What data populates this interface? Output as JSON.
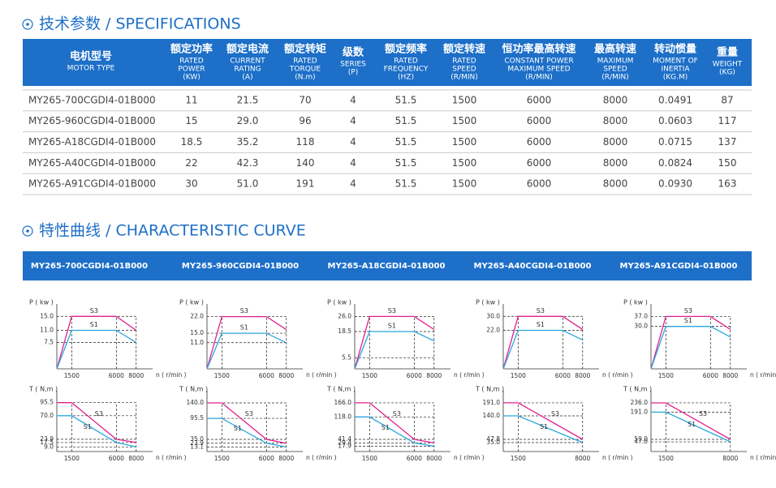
{
  "spec_title": "技术参数 / SPECIFICATIONS",
  "table": {
    "header": [
      {
        "cn": "电机型号",
        "en": [
          "MOTOR TYPE"
        ]
      },
      {
        "cn": "额定功率",
        "en": [
          "RATED",
          "POWER",
          "(KW)"
        ]
      },
      {
        "cn": "额定电流",
        "en": [
          "CURRENT",
          "RATING",
          "(A)"
        ]
      },
      {
        "cn": "额定转矩",
        "en": [
          "RATED",
          "TORQUE",
          "(N.m)"
        ]
      },
      {
        "cn": "级数",
        "en": [
          "SERIES",
          "(P)"
        ]
      },
      {
        "cn": "额定频率",
        "en": [
          "RATED",
          "FREQUENCY",
          "(HZ)"
        ]
      },
      {
        "cn": "额定转速",
        "en": [
          "RATED",
          "SPEED",
          "(R/MIN)"
        ]
      },
      {
        "cn": "恒功率最高转速",
        "en": [
          "CONSTANT POWER",
          "MAXIMUM SPEED",
          "(R/MIN)"
        ]
      },
      {
        "cn": "最高转速",
        "en": [
          "MAXIMUM",
          "SPEED",
          "(R/MIN)"
        ]
      },
      {
        "cn": "转动惯量",
        "en": [
          "MOMENT OF",
          "INERTIA",
          "(KG.M)"
        ]
      },
      {
        "cn": "重量",
        "en": [
          "WEIGHT",
          "(KG)"
        ]
      }
    ],
    "rows": [
      [
        "MY265-700CGDI4-01B000",
        "11",
        "21.5",
        "70",
        "4",
        "51.5",
        "1500",
        "6000",
        "8000",
        "0.0491",
        "87"
      ],
      [
        "MY265-960CGDI4-01B000",
        "15",
        "29.0",
        "96",
        "4",
        "51.5",
        "1500",
        "6000",
        "8000",
        "0.0603",
        "117"
      ],
      [
        "MY265-A18CGDI4-01B000",
        "18.5",
        "35.2",
        "118",
        "4",
        "51.5",
        "1500",
        "6000",
        "8000",
        "0.0715",
        "137"
      ],
      [
        "MY265-A40CGDI4-01B000",
        "22",
        "42.3",
        "140",
        "4",
        "51.5",
        "1500",
        "6000",
        "8000",
        "0.0824",
        "150"
      ],
      [
        "MY265-A91CGDI4-01B000",
        "30",
        "51.0",
        "191",
        "4",
        "51.5",
        "1500",
        "6000",
        "8000",
        "0.0930",
        "163"
      ]
    ]
  },
  "curve_title": "特性曲线 / CHARACTERISTIC CURVE",
  "power_axis_label": "P ( kw )",
  "torque_axis_label": "T ( N,m )",
  "speed_axis_label": "n ( r/min )",
  "curves": [
    {
      "model": "MY265-700CGDI4-01B000",
      "power": {
        "xlim": [
          0,
          9000
        ],
        "ylim": [
          0,
          19
        ],
        "xticks": [
          1500,
          6000,
          8000
        ],
        "yticks": [
          {
            "value": 15,
            "label": "15.0"
          },
          {
            "value": 11,
            "label": "11.0"
          },
          7.5
        ],
        "x": [
          0,
          1500,
          6000,
          8000
        ],
        "series": [
          {
            "name": "S3",
            "color": "#e2208c",
            "values": [
              0,
              15,
              15,
              11
            ]
          },
          {
            "name": "S1",
            "color": "#2aa6de",
            "values": [
              0,
              11,
              11,
              7.5
            ]
          }
        ]
      },
      "torque": {
        "xlim": [
          0,
          9000
        ],
        "ylim": [
          0,
          114
        ],
        "xticks": [
          1500,
          6000,
          8000
        ],
        "yticks": [
          95.5,
          {
            "value": 70,
            "label": "70.0"
          },
          23.9,
          17.5,
          {
            "value": 9,
            "label": "9.0"
          }
        ],
        "x": [
          0,
          1500,
          6000,
          8000
        ],
        "series": [
          {
            "name": "S3",
            "color": "#e2208c",
            "values": [
              95.5,
              95.5,
              23.9,
              17.5
            ]
          },
          {
            "name": "S1",
            "color": "#2aa6de",
            "values": [
              70,
              70,
              17.5,
              9
            ]
          }
        ]
      }
    },
    {
      "model": "MY265-960CGDI4-01B000",
      "power": {
        "xlim": [
          0,
          9000
        ],
        "ylim": [
          0,
          28
        ],
        "xticks": [
          1500,
          6000,
          8000
        ],
        "yticks": [
          {
            "value": 22,
            "label": "22.0"
          },
          {
            "value": 15,
            "label": "15.0"
          },
          {
            "value": 11,
            "label": "11.0"
          }
        ],
        "x": [
          0,
          1500,
          6000,
          8000
        ],
        "series": [
          {
            "name": "S3",
            "color": "#e2208c",
            "values": [
              0,
              22,
              22,
              16.5
            ]
          },
          {
            "name": "S1",
            "color": "#2aa6de",
            "values": [
              0,
              15,
              15,
              11
            ]
          }
        ]
      },
      "torque": {
        "xlim": [
          0,
          9000
        ],
        "ylim": [
          0,
          168
        ],
        "xticks": [
          1500,
          6000,
          8000
        ],
        "yticks": [
          {
            "value": 140,
            "label": "140.0"
          },
          95.5,
          {
            "value": 35,
            "label": "35.0"
          },
          23.9,
          13.1
        ],
        "x": [
          0,
          1500,
          6000,
          8000
        ],
        "series": [
          {
            "name": "S3",
            "color": "#e2208c",
            "values": [
              140,
              140,
              35,
              23.9
            ]
          },
          {
            "name": "S1",
            "color": "#2aa6de",
            "values": [
              95.5,
              95.5,
              23.9,
              13.1
            ]
          }
        ]
      }
    },
    {
      "model": "MY265-A18CGDI4-01B000",
      "power": {
        "xlim": [
          0,
          9000
        ],
        "ylim": [
          0,
          33
        ],
        "xticks": [
          1500,
          6000,
          8000
        ],
        "yticks": [
          {
            "value": 26,
            "label": "26.0"
          },
          18.5,
          5.5
        ],
        "x": [
          0,
          1500,
          6000,
          8000
        ],
        "series": [
          {
            "name": "S3",
            "color": "#e2208c",
            "values": [
              0,
              26,
              26,
              19.5
            ]
          },
          {
            "name": "S1",
            "color": "#2aa6de",
            "values": [
              0,
              18.5,
              18.5,
              13.9
            ]
          }
        ]
      },
      "torque": {
        "xlim": [
          0,
          9000
        ],
        "ylim": [
          0,
          199
        ],
        "xticks": [
          1500,
          6000,
          8000
        ],
        "yticks": [
          {
            "value": 166,
            "label": "166.0"
          },
          {
            "value": 118,
            "label": "118.0"
          },
          41.4,
          29.4,
          17.9
        ],
        "x": [
          0,
          1500,
          6000,
          8000
        ],
        "series": [
          {
            "name": "S3",
            "color": "#e2208c",
            "values": [
              166,
              166,
              41.4,
              29.4
            ]
          },
          {
            "name": "S1",
            "color": "#2aa6de",
            "values": [
              118,
              118,
              29.4,
              17.9
            ]
          }
        ]
      }
    },
    {
      "model": "MY265-A40CGDI4-01B000",
      "power": {
        "xlim": [
          0,
          9000
        ],
        "ylim": [
          0,
          38
        ],
        "xticks": [
          1500,
          6000,
          8000
        ],
        "yticks": [
          {
            "value": 30,
            "label": "30.0"
          },
          {
            "value": 22,
            "label": "22.0"
          }
        ],
        "x": [
          0,
          1500,
          6000,
          8000
        ],
        "series": [
          {
            "name": "S3",
            "color": "#e2208c",
            "values": [
              0,
              30,
              30,
              22.5
            ]
          },
          {
            "name": "S1",
            "color": "#2aa6de",
            "values": [
              0,
              22,
              22,
              16.5
            ]
          }
        ]
      },
      "torque": {
        "xlim": [
          0,
          9000
        ],
        "ylim": [
          0,
          229
        ],
        "xticks": [
          1500,
          8000
        ],
        "yticks": [
          {
            "value": 191,
            "label": "191.0"
          },
          {
            "value": 140,
            "label": "140.0"
          },
          47.8,
          {
            "value": 35,
            "label": "35.0"
          }
        ],
        "x": [
          0,
          1500,
          8000
        ],
        "series": [
          {
            "name": "S3",
            "color": "#e2208c",
            "values": [
              191,
              191,
              47.8
            ]
          },
          {
            "name": "S1",
            "color": "#2aa6de",
            "values": [
              140,
              140,
              35
            ]
          }
        ]
      }
    },
    {
      "model": "MY265-A91CGDI4-01B000",
      "power": {
        "xlim": [
          0,
          9000
        ],
        "ylim": [
          0,
          47
        ],
        "xticks": [
          1500,
          6000,
          8000
        ],
        "yticks": [
          {
            "value": 37,
            "label": "37.0"
          },
          {
            "value": 30,
            "label": "30.0"
          }
        ],
        "x": [
          0,
          1500,
          6000,
          8000
        ],
        "series": [
          {
            "name": "S3",
            "color": "#e2208c",
            "values": [
              0,
              37,
              37,
              27.8
            ]
          },
          {
            "name": "S1",
            "color": "#2aa6de",
            "values": [
              0,
              30,
              30,
              22.5
            ]
          }
        ]
      },
      "torque": {
        "xlim": [
          0,
          9000
        ],
        "ylim": [
          0,
          283
        ],
        "xticks": [
          1500,
          8000
        ],
        "yticks": [
          {
            "value": 236,
            "label": "236.0"
          },
          {
            "value": 191,
            "label": "191.0"
          },
          {
            "value": 59,
            "label": "59.0"
          },
          {
            "value": 47,
            "label": "47.0"
          }
        ],
        "x": [
          0,
          1500,
          8000
        ],
        "series": [
          {
            "name": "S3",
            "color": "#e2208c",
            "values": [
              236,
              236,
              59
            ]
          },
          {
            "name": "S1",
            "color": "#2aa6de",
            "values": [
              191,
              191,
              47
            ]
          }
        ]
      }
    }
  ]
}
